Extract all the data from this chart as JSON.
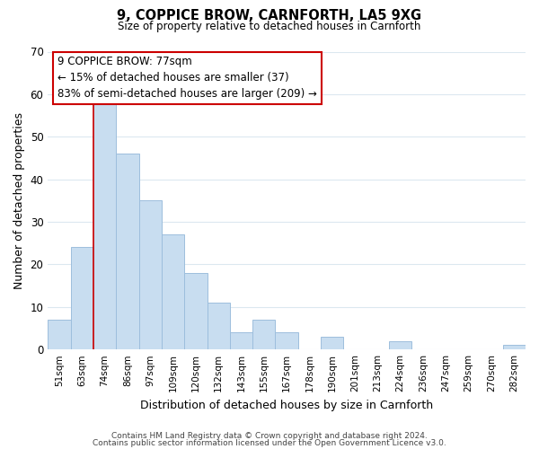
{
  "title": "9, COPPICE BROW, CARNFORTH, LA5 9XG",
  "subtitle": "Size of property relative to detached houses in Carnforth",
  "xlabel": "Distribution of detached houses by size in Carnforth",
  "ylabel": "Number of detached properties",
  "bar_color": "#c8ddf0",
  "bar_edge_color": "#9dbedd",
  "categories": [
    "51sqm",
    "63sqm",
    "74sqm",
    "86sqm",
    "97sqm",
    "109sqm",
    "120sqm",
    "132sqm",
    "143sqm",
    "155sqm",
    "167sqm",
    "178sqm",
    "190sqm",
    "201sqm",
    "213sqm",
    "224sqm",
    "236sqm",
    "247sqm",
    "259sqm",
    "270sqm",
    "282sqm"
  ],
  "values": [
    7,
    24,
    58,
    46,
    35,
    27,
    18,
    11,
    4,
    7,
    4,
    0,
    3,
    0,
    0,
    2,
    0,
    0,
    0,
    0,
    1
  ],
  "ylim": [
    0,
    70
  ],
  "yticks": [
    0,
    10,
    20,
    30,
    40,
    50,
    60,
    70
  ],
  "property_line_x": 2.5,
  "annotation_line1": "9 COPPICE BROW: 77sqm",
  "annotation_line2": "← 15% of detached houses are smaller (37)",
  "annotation_line3": "83% of semi-detached houses are larger (209) →",
  "footer_line1": "Contains HM Land Registry data © Crown copyright and database right 2024.",
  "footer_line2": "Contains public sector information licensed under the Open Government Licence v3.0.",
  "background_color": "#ffffff",
  "grid_color": "#dce8f0",
  "annotation_box_color": "#ffffff",
  "annotation_box_edge_color": "#cc0000",
  "property_line_color": "#cc0000"
}
